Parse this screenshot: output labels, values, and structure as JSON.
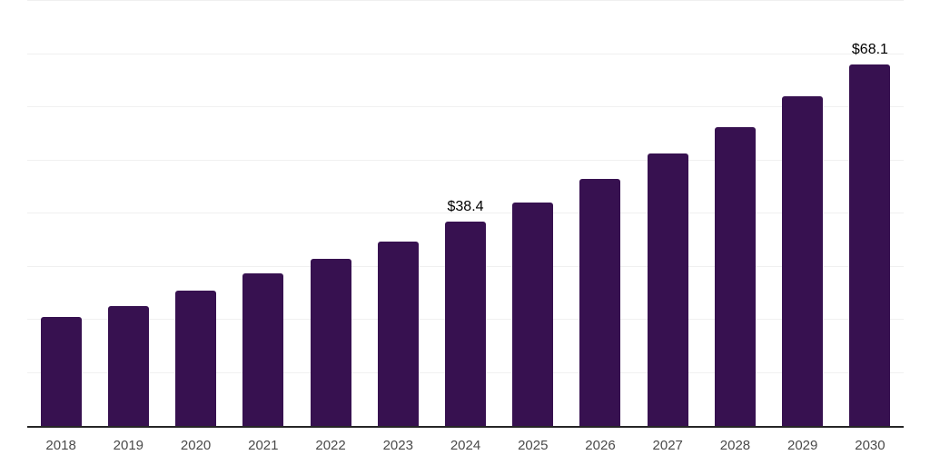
{
  "chart_data": {
    "type": "bar",
    "title": "",
    "categories": [
      "2018",
      "2019",
      "2020",
      "2021",
      "2022",
      "2023",
      "2024",
      "2025",
      "2026",
      "2027",
      "2028",
      "2029",
      "2030"
    ],
    "values": [
      20.6,
      22.6,
      25.5,
      28.7,
      31.4,
      34.7,
      38.4,
      42.1,
      46.5,
      51.2,
      56.3,
      62.1,
      68.1
    ],
    "point_labels": [
      null,
      null,
      null,
      null,
      null,
      null,
      "$38.4",
      null,
      null,
      null,
      null,
      null,
      "$68.1"
    ],
    "xlabel": "",
    "ylabel": "",
    "ylim": [
      0,
      80
    ],
    "grid_step": 10,
    "grid": "horizontal",
    "legend_position": "none",
    "y_axis_labels_visible": false,
    "colors": {
      "bar": "#371150",
      "axis_line": "#262626",
      "gridline": "#f0f0f0",
      "x_tick_label": "#4a4a4a",
      "data_label": "#000000",
      "background": "#ffffff"
    }
  }
}
